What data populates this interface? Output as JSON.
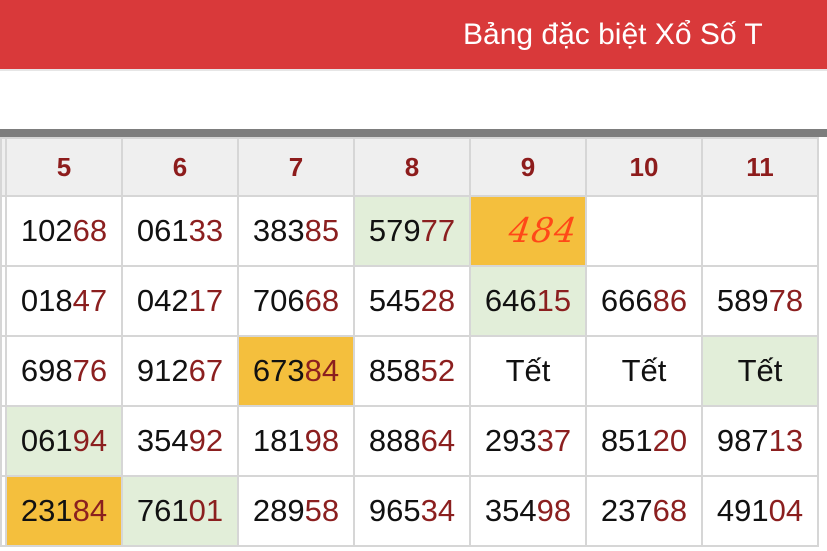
{
  "header": {
    "title": "Bảng đặc biệt Xổ Số T"
  },
  "colors": {
    "header_red": "#d9393a",
    "highlight_green": "#e2eed9",
    "highlight_yellow": "#f4bf3d",
    "tail_digits": "#8b1f1f",
    "handwriting": "#ff4818"
  },
  "table": {
    "columns": [
      "",
      "5",
      "6",
      "7",
      "8",
      "9",
      "10",
      "11"
    ],
    "rows": [
      [
        {
          "h": "",
          "t": ""
        },
        {
          "h": "102",
          "t": "68"
        },
        {
          "h": "061",
          "t": "33"
        },
        {
          "h": "383",
          "t": "85"
        },
        {
          "h": "579",
          "t": "77",
          "bg": "green"
        },
        {
          "hand": "484",
          "bg": "yellow"
        },
        {
          "h": "",
          "t": ""
        },
        {
          "h": "",
          "t": ""
        }
      ],
      [
        {
          "h": "",
          "t": ""
        },
        {
          "h": "018",
          "t": "47"
        },
        {
          "h": "042",
          "t": "17"
        },
        {
          "h": "706",
          "t": "68"
        },
        {
          "h": "545",
          "t": "28"
        },
        {
          "h": "646",
          "t": "15",
          "bg": "green"
        },
        {
          "h": "666",
          "t": "86"
        },
        {
          "h": "589",
          "t": "78"
        }
      ],
      [
        {
          "h": "",
          "t": ""
        },
        {
          "h": "698",
          "t": "76"
        },
        {
          "h": "912",
          "t": "67"
        },
        {
          "h": "673",
          "t": "84",
          "bg": "yellow"
        },
        {
          "h": "858",
          "t": "52"
        },
        {
          "h": "Tết",
          "t": ""
        },
        {
          "h": "Tết",
          "t": ""
        },
        {
          "h": "Tết",
          "t": "",
          "bg": "green"
        }
      ],
      [
        {
          "h": "",
          "t": ""
        },
        {
          "h": "061",
          "t": "94",
          "bg": "green"
        },
        {
          "h": "354",
          "t": "92"
        },
        {
          "h": "181",
          "t": "98"
        },
        {
          "h": "888",
          "t": "64"
        },
        {
          "h": "293",
          "t": "37"
        },
        {
          "h": "851",
          "t": "20"
        },
        {
          "h": "987",
          "t": "13"
        }
      ],
      [
        {
          "h": "",
          "t": ""
        },
        {
          "h": "231",
          "t": "84",
          "bg": "yellow"
        },
        {
          "h": "761",
          "t": "01",
          "bg": "green"
        },
        {
          "h": "289",
          "t": "58"
        },
        {
          "h": "965",
          "t": "34"
        },
        {
          "h": "354",
          "t": "98"
        },
        {
          "h": "237",
          "t": "68"
        },
        {
          "h": "491",
          "t": "04"
        }
      ]
    ]
  }
}
